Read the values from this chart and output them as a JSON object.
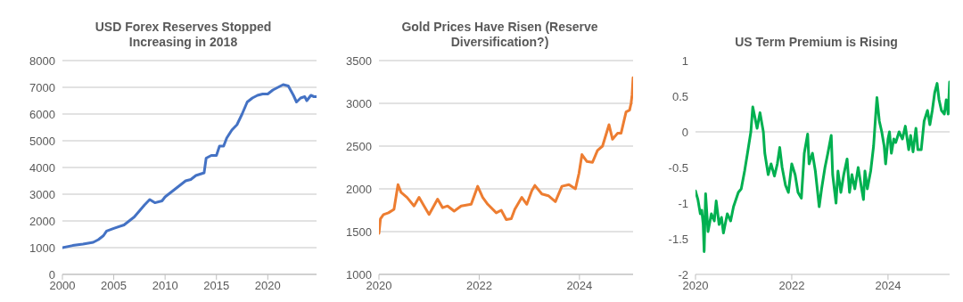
{
  "chart_data": [
    {
      "type": "line",
      "title": "USD Forex Reserves Stopped Increasing in 2018",
      "color": "#4472c4",
      "grid": "y",
      "xlim": [
        2000,
        2024.75
      ],
      "xticks": [
        2000,
        2005,
        2010,
        2015,
        2020
      ],
      "ylim": [
        0,
        8000
      ],
      "yticks": [
        0,
        1000,
        2000,
        3000,
        4000,
        5000,
        6000,
        7000,
        8000
      ],
      "x": [
        2000,
        2001,
        2002,
        2003,
        2003.5,
        2004,
        2004.3,
        2005,
        2006,
        2007,
        2008,
        2008.5,
        2009,
        2009.7,
        2010,
        2011,
        2012,
        2012.5,
        2013,
        2013.8,
        2014,
        2014.5,
        2015,
        2015.3,
        2015.7,
        2016,
        2016.5,
        2017,
        2017.5,
        2018,
        2018.5,
        2019,
        2019.5,
        2020,
        2020.5,
        2021,
        2021.5,
        2022,
        2022.5,
        2022.8,
        2023.2,
        2023.6,
        2023.8,
        2024.2,
        2024.5,
        2024.75
      ],
      "values": [
        1000,
        1080,
        1130,
        1200,
        1300,
        1450,
        1620,
        1720,
        1850,
        2150,
        2600,
        2800,
        2680,
        2750,
        2900,
        3200,
        3500,
        3550,
        3700,
        3800,
        4350,
        4450,
        4450,
        4800,
        4800,
        5100,
        5400,
        5600,
        6000,
        6450,
        6600,
        6700,
        6750,
        6750,
        6900,
        7000,
        7100,
        7050,
        6700,
        6450,
        6600,
        6650,
        6500,
        6700,
        6650,
        6650
      ]
    },
    {
      "type": "line",
      "title": "Gold Prices Have Risen (Reserve Diversification?)",
      "color": "#ed7d31",
      "grid": "y",
      "xlim": [
        2020,
        2025.07
      ],
      "xticks": [
        2020,
        2022,
        2024
      ],
      "ylim": [
        1000,
        3500
      ],
      "yticks": [
        1000,
        1500,
        2000,
        2500,
        3000,
        3500
      ],
      "x": [
        2020.0,
        2020.03,
        2020.09,
        2020.19,
        2020.3,
        2020.38,
        2020.44,
        2020.56,
        2020.7,
        2020.8,
        2020.9,
        2021.0,
        2021.17,
        2021.27,
        2021.37,
        2021.5,
        2021.64,
        2021.84,
        2021.97,
        2022.07,
        2022.17,
        2022.34,
        2022.44,
        2022.54,
        2022.64,
        2022.71,
        2022.85,
        2022.95,
        2023.05,
        2023.11,
        2023.25,
        2023.38,
        2023.52,
        2023.65,
        2023.79,
        2023.92,
        2023.99,
        2024.05,
        2024.15,
        2024.26,
        2024.36,
        2024.46,
        2024.59,
        2024.66,
        2024.76,
        2024.83,
        2024.93,
        2025.0,
        2025.03,
        2025.05,
        2025.07
      ],
      "values": [
        1480,
        1650,
        1700,
        1720,
        1760,
        2050,
        1960,
        1900,
        1800,
        1900,
        1800,
        1700,
        1880,
        1780,
        1800,
        1740,
        1800,
        1820,
        2030,
        1900,
        1820,
        1720,
        1750,
        1640,
        1650,
        1760,
        1900,
        1820,
        1980,
        2040,
        1940,
        1920,
        1850,
        2030,
        2050,
        2000,
        2180,
        2400,
        2320,
        2310,
        2450,
        2500,
        2750,
        2580,
        2650,
        2650,
        2900,
        2920,
        3000,
        3100,
        3300
      ]
    },
    {
      "type": "line",
      "title": "US Term Premium is Rising",
      "color": "#00b050",
      "grid": false,
      "xlim": [
        2020,
        2025.28
      ],
      "xticks": [
        2020,
        2022,
        2024
      ],
      "ylim": [
        -2,
        1
      ],
      "yticks": [
        -2,
        -1.5,
        -1,
        -0.5,
        0,
        0.5,
        1
      ],
      "ref_lines": [
        {
          "axis": "y",
          "value": 0,
          "color": "#d9d9d9"
        }
      ],
      "x": [
        2020.0,
        2020.05,
        2020.1,
        2020.13,
        2020.16,
        2020.18,
        2020.21,
        2020.26,
        2020.33,
        2020.39,
        2020.43,
        2020.49,
        2020.54,
        2020.58,
        2020.66,
        2020.73,
        2020.79,
        2020.89,
        2020.95,
        2021.02,
        2021.08,
        2021.15,
        2021.19,
        2021.28,
        2021.34,
        2021.41,
        2021.44,
        2021.51,
        2021.57,
        2021.64,
        2021.7,
        2021.75,
        2021.8,
        2021.87,
        2021.93,
        2022.0,
        2022.07,
        2022.13,
        2022.2,
        2022.26,
        2022.33,
        2022.36,
        2022.43,
        2022.49,
        2022.57,
        2022.62,
        2022.69,
        2022.75,
        2022.82,
        2022.85,
        2022.92,
        2022.96,
        2023.02,
        2023.08,
        2023.15,
        2023.2,
        2023.25,
        2023.31,
        2023.38,
        2023.44,
        2023.49,
        2023.52,
        2023.57,
        2023.64,
        2023.7,
        2023.74,
        2023.77,
        2023.82,
        2023.87,
        2023.92,
        2023.95,
        2024.0,
        2024.03,
        2024.07,
        2024.12,
        2024.16,
        2024.23,
        2024.3,
        2024.36,
        2024.43,
        2024.47,
        2024.52,
        2024.58,
        2024.62,
        2024.69,
        2024.75,
        2024.82,
        2024.87,
        2024.92,
        2024.97,
        2025.02,
        2025.06,
        2025.11,
        2025.17,
        2025.21,
        2025.25,
        2025.28
      ],
      "values": [
        -0.83,
        -0.95,
        -1.15,
        -1.1,
        -1.3,
        -1.68,
        -0.87,
        -1.4,
        -1.15,
        -1.25,
        -0.97,
        -1.3,
        -1.2,
        -1.42,
        -1.15,
        -1.25,
        -1.05,
        -0.85,
        -0.8,
        -0.55,
        -0.3,
        0.0,
        0.35,
        0.05,
        0.27,
        0.0,
        -0.3,
        -0.6,
        -0.45,
        -0.62,
        -0.45,
        -0.22,
        -0.5,
        -0.75,
        -0.85,
        -0.45,
        -0.6,
        -0.85,
        -0.93,
        -0.3,
        -0.03,
        -0.45,
        -0.3,
        -0.55,
        -1.05,
        -0.8,
        -0.5,
        -0.3,
        -0.05,
        -0.6,
        -1.0,
        -0.55,
        -0.85,
        -0.6,
        -0.38,
        -0.85,
        -0.6,
        -0.8,
        -0.5,
        -0.75,
        -0.95,
        -0.55,
        -0.8,
        -0.55,
        -0.2,
        0.2,
        0.48,
        0.15,
        0.0,
        -0.2,
        -0.45,
        -0.1,
        0.0,
        -0.3,
        -0.1,
        -0.15,
        0.0,
        -0.1,
        0.08,
        -0.25,
        -0.05,
        -0.28,
        0.05,
        -0.25,
        -0.25,
        0.15,
        0.3,
        0.1,
        0.3,
        0.55,
        0.68,
        0.45,
        0.3,
        0.25,
        0.45,
        0.25,
        0.7
      ]
    }
  ]
}
